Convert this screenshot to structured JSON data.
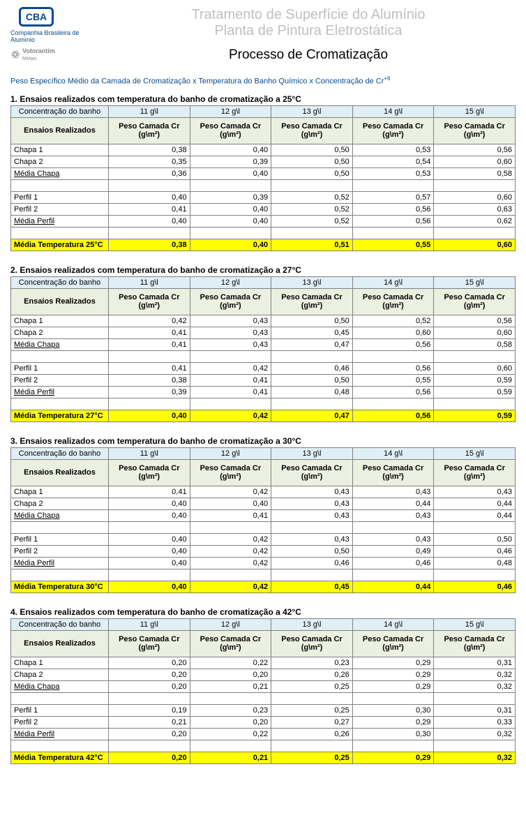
{
  "header": {
    "logo_text": "CBA",
    "company": "Companhia Brasileira de Alumínio",
    "votorantim": "Votorantim",
    "votorantim_sub": "Metais",
    "title1": "Tratamento de Superfície do Alumínio",
    "title2": "Planta de Pintura Eletrostática",
    "title3": "Processo de Cromatização",
    "subtitle_pre": "Peso Específico Médio da Camada de Cromatização x Temperatura do Banho Químico x Concentração de Cr",
    "subtitle_sup": "+6"
  },
  "labels": {
    "conc_header": "Concentração do banho",
    "ensaios_header": "Ensaios Realizados",
    "col_unit": "Peso Camada Cr (g\\m²)",
    "concentrations": [
      "11 g\\l",
      "12 g\\l",
      "13 g\\l",
      "14 g\\l",
      "15 g\\l"
    ],
    "rows": [
      "Chapa 1",
      "Chapa 2",
      "Média Chapa",
      "Perfil 1",
      "Perfil 2",
      "Média Perfil"
    ]
  },
  "sections": [
    {
      "title": "1. Ensaios realizados com temperatura do banho de cromatização a 25°C",
      "summary_label": "Média Temperatura 25°C",
      "chapa1": [
        "0,38",
        "0,40",
        "0,50",
        "0,53",
        "0,56"
      ],
      "chapa2": [
        "0,35",
        "0,39",
        "0,50",
        "0,54",
        "0,60"
      ],
      "mchapa": [
        "0,36",
        "0,40",
        "0,50",
        "0,53",
        "0,58"
      ],
      "perfil1": [
        "0,40",
        "0,39",
        "0,52",
        "0,57",
        "0,60"
      ],
      "perfil2": [
        "0,41",
        "0,40",
        "0,52",
        "0,56",
        "0,63"
      ],
      "mperfil": [
        "0,40",
        "0,40",
        "0,52",
        "0,56",
        "0,62"
      ],
      "summary": [
        "0,38",
        "0,40",
        "0,51",
        "0,55",
        "0,60"
      ]
    },
    {
      "title": "2. Ensaios realizados com temperatura do banho de cromatização a 27°C",
      "summary_label": "Média Temperatura 27°C",
      "chapa1": [
        "0,42",
        "0,43",
        "0,50",
        "0,52",
        "0,56"
      ],
      "chapa2": [
        "0,41",
        "0,43",
        "0,45",
        "0,60",
        "0,60"
      ],
      "mchapa": [
        "0,41",
        "0,43",
        "0,47",
        "0,56",
        "0,58"
      ],
      "perfil1": [
        "0,41",
        "0,42",
        "0,46",
        "0,56",
        "0,60"
      ],
      "perfil2": [
        "0,38",
        "0,41",
        "0,50",
        "0,55",
        "0,59"
      ],
      "mperfil": [
        "0,39",
        "0,41",
        "0,48",
        "0,56",
        "0,59"
      ],
      "summary": [
        "0,40",
        "0,42",
        "0,47",
        "0,56",
        "0,59"
      ]
    },
    {
      "title": "3. Ensaios realizados com temperatura do banho de cromatização a 30°C",
      "summary_label": "Média Temperatura 30°C",
      "chapa1": [
        "0,41",
        "0,42",
        "0,43",
        "0,43",
        "0,43"
      ],
      "chapa2": [
        "0,40",
        "0,40",
        "0,43",
        "0,44",
        "0,44"
      ],
      "mchapa": [
        "0,40",
        "0,41",
        "0,43",
        "0,43",
        "0,44"
      ],
      "perfil1": [
        "0,40",
        "0,42",
        "0,43",
        "0,43",
        "0,50"
      ],
      "perfil2": [
        "0,40",
        "0,42",
        "0,50",
        "0,49",
        "0,46"
      ],
      "mperfil": [
        "0,40",
        "0,42",
        "0,46",
        "0,46",
        "0,48"
      ],
      "summary": [
        "0,40",
        "0,42",
        "0,45",
        "0,44",
        "0,46"
      ]
    },
    {
      "title": "4. Ensaios realizados com temperatura do banho de cromatização a 42°C",
      "summary_label": "Média Temperatura 42°C",
      "chapa1": [
        "0,20",
        "0,22",
        "0,23",
        "0,29",
        "0,31"
      ],
      "chapa2": [
        "0,20",
        "0,20",
        "0,26",
        "0,29",
        "0,32"
      ],
      "mchapa": [
        "0,20",
        "0,21",
        "0,25",
        "0,29",
        "0,32"
      ],
      "perfil1": [
        "0,19",
        "0,23",
        "0,25",
        "0,30",
        "0,31"
      ],
      "perfil2": [
        "0,21",
        "0,20",
        "0,27",
        "0,29",
        "0,33"
      ],
      "mperfil": [
        "0,20",
        "0,22",
        "0,26",
        "0,30",
        "0,32"
      ],
      "summary": [
        "0,20",
        "0,21",
        "0,25",
        "0,29",
        "0,32"
      ]
    }
  ],
  "colors": {
    "blue_hdr": "#e0eef6",
    "green_hdr": "#ecf0e0",
    "highlight": "#ffff00",
    "border": "#808080",
    "title_gray": "#c0c0c0",
    "link_blue": "#0a4a8a"
  }
}
